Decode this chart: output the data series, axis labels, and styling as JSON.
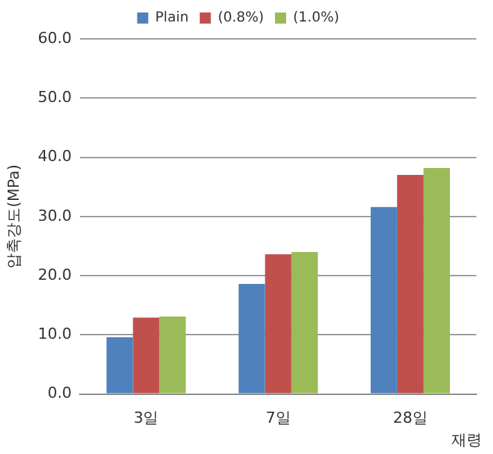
{
  "chart_data": {
    "type": "bar",
    "categories": [
      "3일",
      "7일",
      "28일"
    ],
    "series": [
      {
        "name": "Plain",
        "color": "#4f81bd",
        "values": [
          9.6,
          18.6,
          31.6
        ]
      },
      {
        "name": "(0.8%)",
        "color": "#c0504d",
        "values": [
          12.9,
          23.6,
          37.0
        ]
      },
      {
        "name": "(1.0%)",
        "color": "#9bbb59",
        "values": [
          13.1,
          24.0,
          38.2
        ]
      }
    ],
    "ylabel": "압축강도(MPa)",
    "xlabel": "재령",
    "ylim": [
      0,
      60
    ],
    "yticks": [
      {
        "value": 0,
        "label": "0.0"
      },
      {
        "value": 10,
        "label": "10.0"
      },
      {
        "value": 20,
        "label": "20.0"
      },
      {
        "value": 30,
        "label": "30.0"
      },
      {
        "value": 40,
        "label": "40.0"
      },
      {
        "value": 50,
        "label": "50.0"
      },
      {
        "value": 60,
        "label": "60.0"
      }
    ],
    "grid": "y",
    "legend": "top"
  }
}
